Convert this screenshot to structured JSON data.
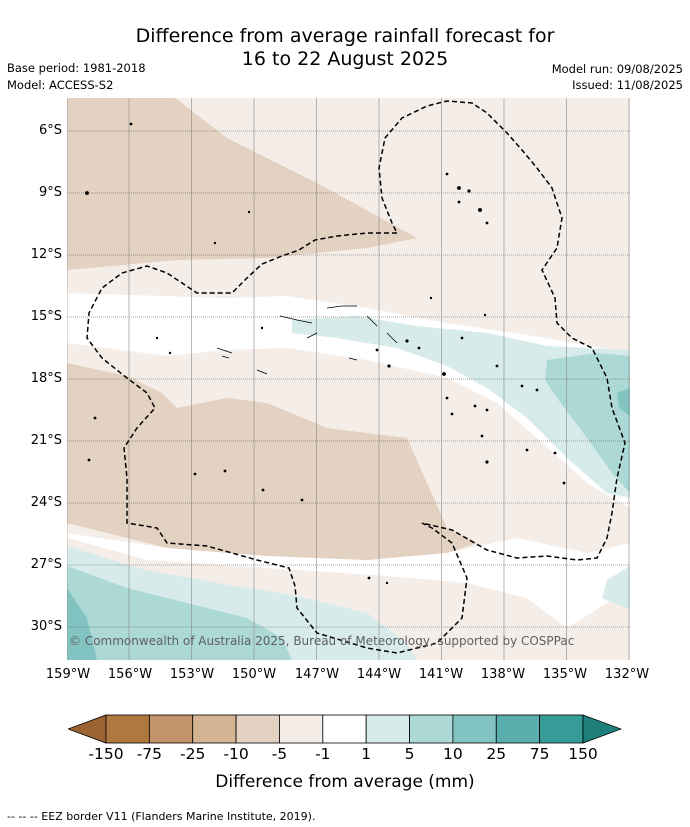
{
  "title": {
    "line1": "Difference from average rainfall forecast for",
    "line2": "16 to 22 August 2025"
  },
  "meta": {
    "base_period": "Base period: 1981-2018",
    "model": "Model: ACCESS-S2",
    "model_run": "Model run: 09/08/2025",
    "issued": "Issued: 11/08/2025"
  },
  "map": {
    "lat_labels": [
      "6°S",
      "9°S",
      "12°S",
      "15°S",
      "18°S",
      "21°S",
      "24°S",
      "27°S",
      "30°S"
    ],
    "lon_labels": [
      "159°W",
      "156°W",
      "153°W",
      "150°W",
      "147°W",
      "144°W",
      "141°W",
      "138°W",
      "135°W",
      "132°W"
    ],
    "copyright": "© Commonwealth of Australia 2025, Bureau of Meteorology, supported by COSPPac"
  },
  "colorbar": {
    "title": "Difference from average (mm)",
    "ticks": [
      "-150",
      "-75",
      "-25",
      "-10",
      "-5",
      "-1",
      "1",
      "5",
      "10",
      "25",
      "75",
      "150"
    ],
    "colors": [
      "#9a6331",
      "#b07841",
      "#c39369",
      "#d4b492",
      "#e3d1c1",
      "#f4ede8",
      "#ffffff",
      "#d6ebea",
      "#acd8d6",
      "#82c4c1",
      "#5aafac",
      "#379b98",
      "#1f7f7b"
    ]
  },
  "legend_note": "--  --  -- EEZ border V11 (Flanders Marine Institute, 2019)."
}
